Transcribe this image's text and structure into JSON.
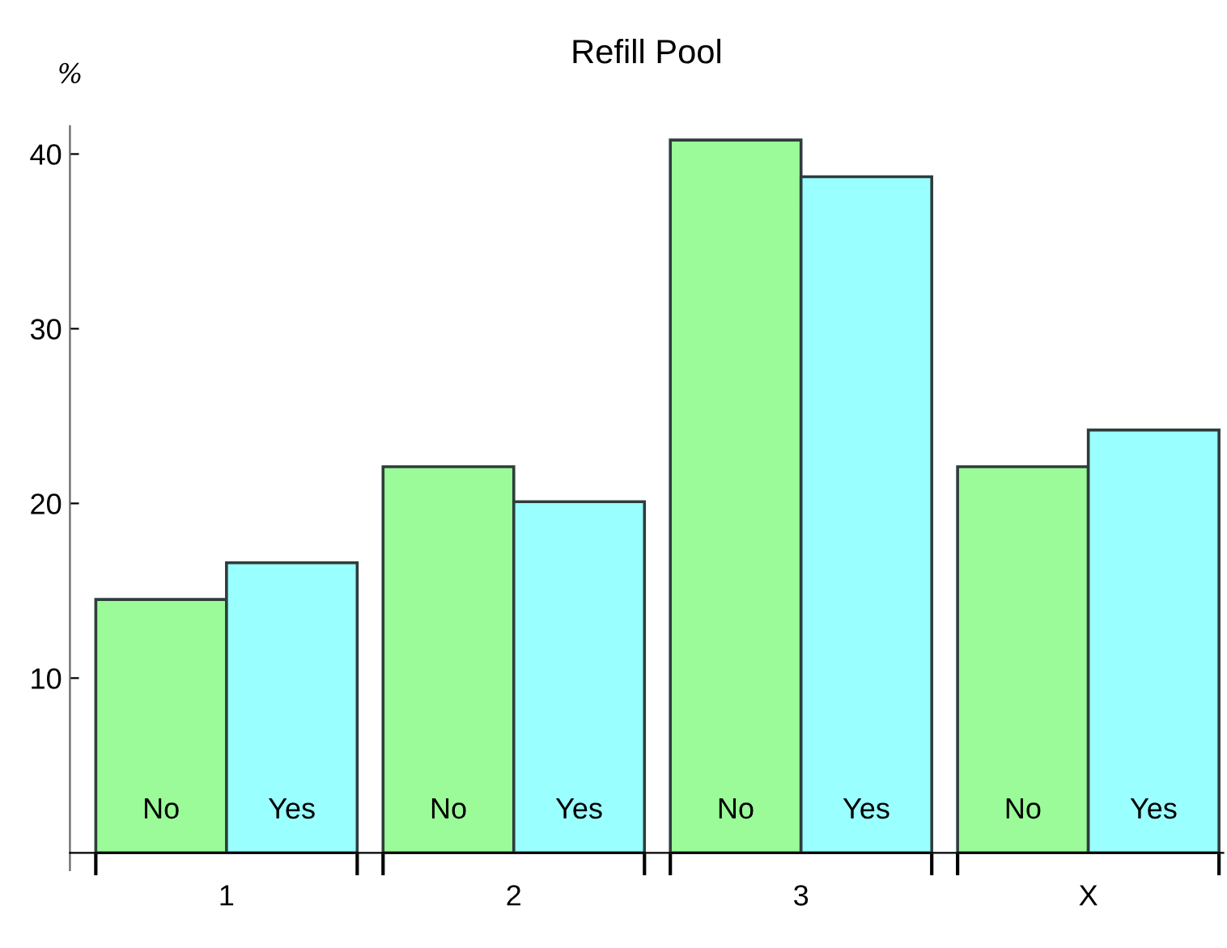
{
  "chart_data": {
    "type": "bar",
    "title": "Refill Pool",
    "ylabel": "%",
    "categories": [
      "1",
      "2",
      "3",
      "X"
    ],
    "series": [
      {
        "name": "No",
        "color": "#9afb98",
        "values": [
          14.5,
          22.1,
          40.8,
          22.1
        ]
      },
      {
        "name": "Yes",
        "color": "#9affff",
        "values": [
          16.6,
          20.1,
          38.7,
          24.2
        ]
      }
    ],
    "ylim": [
      -1,
      41.6
    ],
    "yticks": [
      10,
      20,
      30,
      40
    ],
    "grid": false,
    "legend": false
  }
}
